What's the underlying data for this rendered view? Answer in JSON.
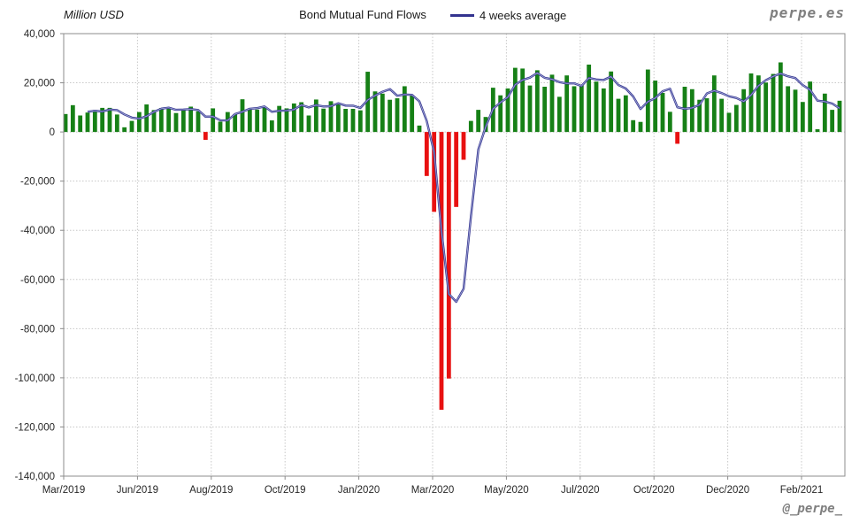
{
  "header": {
    "y_axis_title": "Million USD",
    "title": "Bond Mutual Fund Flows",
    "legend_label": "4 weeks average",
    "brand": "perpe.es"
  },
  "footer": {
    "handle": "@_perpe_"
  },
  "colors": {
    "bar_positive": "#168016",
    "bar_negative": "#e81111",
    "avg_line": "#33338f",
    "avg_line_core": "#a0a6d6",
    "grid": "#c8c8c8",
    "axis_border": "#8c8c8c",
    "tick_text": "#262626"
  },
  "chart_data": {
    "type": "bar",
    "title": "Bond Mutual Fund Flows",
    "ylabel": "Million USD",
    "ylim": [
      -140000,
      40000
    ],
    "ytick_step": 20000,
    "y_tick_labels": [
      "40,000",
      "20,000",
      "0",
      "-20,000",
      "-40,000",
      "-60,000",
      "-80,000",
      "-100,000",
      "-120,000",
      "-140,000"
    ],
    "x_tick_labels": [
      "Mar/2019",
      "Jun/2019",
      "Aug/2019",
      "Oct/2019",
      "Jan/2020",
      "Mar/2020",
      "May/2020",
      "Jul/2020",
      "Oct/2020",
      "Dec/2020",
      "Feb/2021"
    ],
    "x_frequency": "weekly",
    "grid": true,
    "legend_position": "top",
    "series": [
      {
        "name": "Weekly bond mutual fund flows (Million USD)",
        "type": "bar",
        "values": [
          7300,
          10900,
          6700,
          7900,
          8900,
          9800,
          9800,
          7100,
          1900,
          4500,
          8100,
          11200,
          8900,
          9700,
          9700,
          7700,
          9400,
          10300,
          8400,
          -3200,
          9600,
          4200,
          8100,
          7200,
          13300,
          9100,
          9100,
          10000,
          4700,
          10600,
          9600,
          11600,
          12100,
          6700,
          13200,
          9500,
          12500,
          11500,
          9400,
          9400,
          8800,
          24500,
          16500,
          15600,
          13100,
          13700,
          18600,
          14900,
          2600,
          -17900,
          -32500,
          -113000,
          -100300,
          -30500,
          -11300,
          4500,
          9000,
          6100,
          18000,
          14900,
          17700,
          26100,
          25800,
          18900,
          25100,
          18400,
          23300,
          14300,
          23000,
          18600,
          18900,
          27400,
          20500,
          17700,
          24600,
          13500,
          14900,
          4800,
          4100,
          25400,
          20900,
          15900,
          8200,
          -4800,
          18400,
          17400,
          13100,
          13700,
          23000,
          13500,
          7800,
          11000,
          17400,
          23800,
          23000,
          20100,
          23600,
          28300,
          18600,
          17200,
          12200,
          20500,
          1100,
          15600,
          9000,
          12700
        ]
      },
      {
        "name": "4 weeks average",
        "type": "line",
        "derived": "4-week trailing moving average of the weekly bar values"
      }
    ]
  }
}
